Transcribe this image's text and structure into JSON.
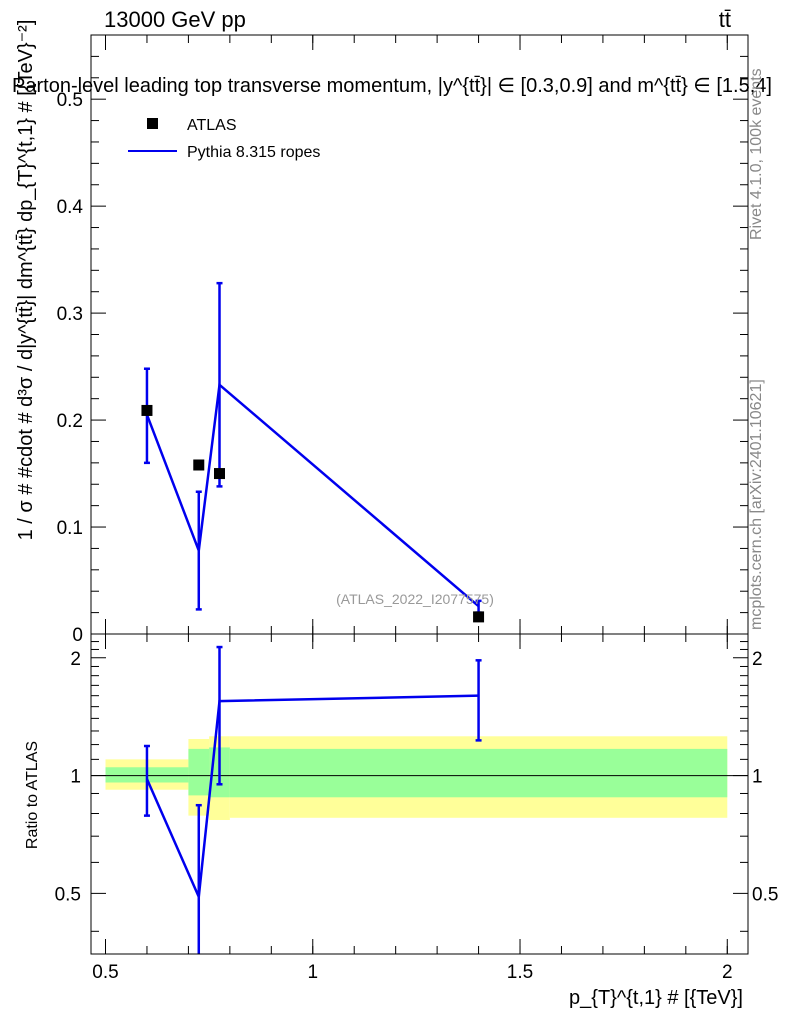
{
  "header": {
    "energy_label": "13000 GeV pp",
    "process_label": "tt̄"
  },
  "side_labels": {
    "rivet": "Rivet 4.1.0,  100k events",
    "mcplots": "mcplots.cern.ch [arXiv:2401.10621]"
  },
  "watermark": "(ATLAS_2022_I2077575)",
  "chart_data": [
    {
      "type": "scatter",
      "panel": "main",
      "title": "Parton-level leading top transverse momentum, |y^{tt̄}| ∈ [0.3,0.9] and m^{tt̄} ∈ [1.5,4]",
      "ylabel": "1 / σ # #cdot # d³σ / d|y^{tt̄}| dm^{tt̄} dp_{T}^{t,1} # [{TeV}⁻²]",
      "xlim": [
        0.465,
        2.05
      ],
      "ylim": [
        0,
        0.56
      ],
      "yticks": [
        0,
        0.1,
        0.2,
        0.3,
        0.4,
        0.5
      ],
      "ytick_labels": [
        "0",
        "0.1",
        "0.2",
        "0.3",
        "0.4",
        "0.5"
      ],
      "legend_position": "top-left",
      "series": [
        {
          "name": "ATLAS",
          "style": "markers",
          "color": "#000000",
          "x": [
            0.6,
            0.725,
            0.775,
            1.4
          ],
          "y": [
            0.209,
            0.158,
            0.15,
            0.016
          ]
        },
        {
          "name": "Pythia 8.315 ropes",
          "style": "line",
          "color": "#0000ee",
          "x": [
            0.6,
            0.725,
            0.775,
            1.4
          ],
          "y": [
            0.205,
            0.078,
            0.233,
            0.026
          ],
          "yerr_low": [
            0.045,
            0.055,
            0.095,
            0.006
          ],
          "yerr_high": [
            0.043,
            0.055,
            0.095,
            0.005
          ]
        }
      ]
    },
    {
      "type": "line",
      "panel": "ratio",
      "ylabel": "Ratio to ATLAS",
      "xlabel": "p_{T}^{t,1} # [{TeV}]",
      "xlim": [
        0.465,
        2.05
      ],
      "ylim": [
        0.35,
        2.3
      ],
      "yticks": [
        0.5,
        1,
        2
      ],
      "ytick_labels": [
        "0.5",
        "1",
        "2"
      ],
      "xticks": [
        0.5,
        1,
        1.5,
        2
      ],
      "xtick_labels": [
        "0.5",
        "1",
        "1.5",
        "2"
      ],
      "reference_line": 1,
      "bands": [
        {
          "x_low": 0.5,
          "x_high": 0.7,
          "green": [
            0.96,
            1.05
          ],
          "yellow": [
            0.92,
            1.1
          ]
        },
        {
          "x_low": 0.7,
          "x_high": 0.75,
          "green": [
            0.89,
            1.17
          ],
          "yellow": [
            0.79,
            1.24
          ]
        },
        {
          "x_low": 0.75,
          "x_high": 0.8,
          "green": [
            0.88,
            1.18
          ],
          "yellow": [
            0.77,
            1.26
          ]
        },
        {
          "x_low": 0.8,
          "x_high": 2.0,
          "green": [
            0.88,
            1.17
          ],
          "yellow": [
            0.78,
            1.26
          ]
        }
      ],
      "series": [
        {
          "name": "Pythia 8.315 ropes",
          "color": "#0000ee",
          "x": [
            0.6,
            0.725,
            0.775,
            1.4
          ],
          "y": [
            0.98,
            0.49,
            1.55,
            1.6
          ],
          "yerr_low": [
            0.19,
            0.15,
            0.6,
            0.37
          ],
          "yerr_high": [
            0.21,
            0.35,
            0.58,
            0.37
          ]
        }
      ]
    }
  ]
}
